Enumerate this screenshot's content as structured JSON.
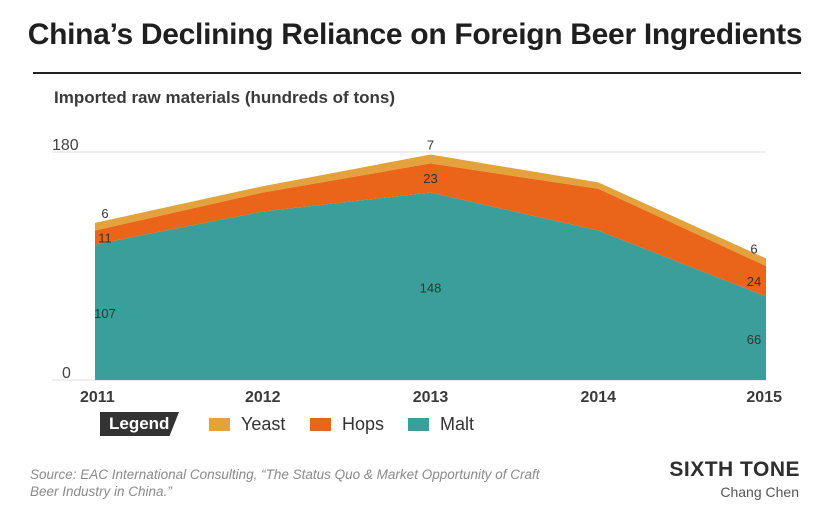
{
  "title": "China’s Declining Reliance on Foreign Beer Ingredients",
  "subtitle": "Imported raw materials (hundreds of tons)",
  "chart_data": {
    "type": "area",
    "stacked": true,
    "categories": [
      "2011",
      "2012",
      "2013",
      "2014",
      "2015"
    ],
    "series": [
      {
        "name": "Malt",
        "values": [
          107,
          133,
          148,
          118,
          66
        ],
        "color": "#3a9e9a",
        "labels": [
          "107",
          null,
          "148",
          null,
          "66"
        ]
      },
      {
        "name": "Hops",
        "values": [
          11,
          15,
          23,
          33,
          24
        ],
        "color": "#ea6419",
        "labels": [
          "11",
          null,
          "23",
          null,
          "24"
        ]
      },
      {
        "name": "Yeast",
        "values": [
          6,
          5,
          7,
          5,
          6
        ],
        "color": "#e3a23c",
        "labels": [
          "6",
          null,
          "7",
          null,
          "6"
        ]
      }
    ],
    "ylim": [
      0,
      180
    ],
    "yticks": [
      "0",
      "180"
    ],
    "grid": true,
    "legend_placement": "bottom-left"
  },
  "legend": {
    "title": "Legend",
    "items": [
      {
        "label": "Yeast",
        "color": "#e3a23c"
      },
      {
        "label": "Hops",
        "color": "#ea6419"
      },
      {
        "label": "Malt",
        "color": "#3a9e9a"
      }
    ]
  },
  "source": "Source: EAC International Consulting, “The Status Quo & Market Opportunity of  Craft Beer Industry in China.”",
  "brand": "SIXTH TONE",
  "author": "Chang Chen"
}
